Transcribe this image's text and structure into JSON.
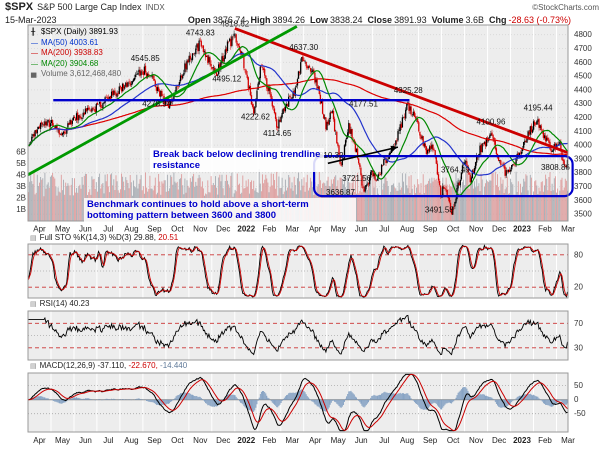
{
  "header": {
    "symbol": "$SPX",
    "name": "S&P 500 Large Cap Index",
    "exchange": "INDX",
    "date": "15-Mar-2023",
    "copyright": "©StockCharts.com",
    "fields": [
      {
        "label": "Open",
        "value": "3876.74"
      },
      {
        "label": "High",
        "value": "3894.26"
      },
      {
        "label": "Low",
        "value": "3838.24"
      },
      {
        "label": "Close",
        "value": "3891.93"
      },
      {
        "label": "Volume",
        "value": "3.6B"
      },
      {
        "label": "Chg",
        "value": "-28.63 (-0.73%)",
        "color": "#cc0000"
      }
    ]
  },
  "legend": {
    "series": "$SPX (Daily) 3891.93",
    "ma50": "MA(50) 4003.61",
    "ma200": "MA(200) 3938.83",
    "ma20": "MA(20) 3904.68",
    "volume": "Volume 3,612,468,480"
  },
  "annotations": {
    "note1": "Break back below declining trendline resistance",
    "note2": "Benchmark continues to hold above a short-term bottoming pattern between 3600 and 3800"
  },
  "panels": {
    "sto": {
      "label": "Full STO %K(14,3) %D(3)",
      "k": "29.88,",
      "d": "20.51"
    },
    "rsi": {
      "label": "RSI(14)",
      "value": "40.23"
    },
    "macd": {
      "label": "MACD(12,26,9)",
      "v1": "-37.110,",
      "v2": "-22.670,",
      "v3": "-14.440"
    }
  },
  "chart_data": {
    "type": "candlestick",
    "title": "$SPX S&P 500 Large Cap Index (Daily)",
    "months": 23.5,
    "days_per_month": 21,
    "ylim": [
      3450,
      4870
    ],
    "y_ticks": [
      3500,
      3600,
      3700,
      3800,
      3900,
      4000,
      4100,
      4200,
      4300,
      4400,
      4500,
      4600,
      4700,
      4800
    ],
    "volume_axis": {
      "ticks": [
        1,
        2,
        3,
        4,
        5,
        6
      ],
      "unit": "B"
    },
    "x_labels": [
      "Apr",
      "May",
      "Jun",
      "Jul",
      "Aug",
      "Sep",
      "Oct",
      "Nov",
      "Dec",
      "2022",
      "Feb",
      "Mar",
      "Apr",
      "May",
      "Jun",
      "Jul",
      "Aug",
      "Sep",
      "Oct",
      "Nov",
      "Dec",
      "2023",
      "Feb",
      "Mar"
    ],
    "price_anchors": [
      [
        0,
        4015
      ],
      [
        0.6,
        4170
      ],
      [
        1.05,
        4150
      ],
      [
        1.4,
        4065
      ],
      [
        2.0,
        4195
      ],
      [
        2.6,
        4245
      ],
      [
        3.1,
        4285
      ],
      [
        3.45,
        4335
      ],
      [
        3.8,
        4390
      ],
      [
        4.3,
        4440
      ],
      [
        4.8,
        4510
      ],
      [
        5.05,
        4537
      ],
      [
        5.5,
        4450
      ],
      [
        5.95,
        4307
      ],
      [
        6.15,
        4290
      ],
      [
        6.7,
        4520
      ],
      [
        7.2,
        4690
      ],
      [
        7.55,
        4735
      ],
      [
        7.95,
        4570
      ],
      [
        8.2,
        4512
      ],
      [
        8.65,
        4715
      ],
      [
        9.0,
        4795
      ],
      [
        9.3,
        4660
      ],
      [
        9.8,
        4240
      ],
      [
        10.1,
        4580
      ],
      [
        10.5,
        4380
      ],
      [
        10.8,
        4130
      ],
      [
        11.15,
        4270
      ],
      [
        11.6,
        4400
      ],
      [
        11.9,
        4620
      ],
      [
        12.25,
        4575
      ],
      [
        12.6,
        4420
      ],
      [
        12.95,
        4135
      ],
      [
        13.2,
        4260
      ],
      [
        13.6,
        3835
      ],
      [
        13.95,
        4140
      ],
      [
        14.3,
        3945
      ],
      [
        14.6,
        3655
      ],
      [
        14.95,
        3795
      ],
      [
        15.2,
        3755
      ],
      [
        15.5,
        3880
      ],
      [
        15.95,
        3995
      ],
      [
        16.5,
        4295
      ],
      [
        16.95,
        4150
      ],
      [
        17.35,
        3925
      ],
      [
        17.6,
        4005
      ],
      [
        17.95,
        3640
      ],
      [
        18.1,
        3700
      ],
      [
        18.45,
        3510
      ],
      [
        18.75,
        3730
      ],
      [
        19.0,
        3890
      ],
      [
        19.25,
        3735
      ],
      [
        19.6,
        3955
      ],
      [
        19.95,
        4025
      ],
      [
        20.1,
        4085
      ],
      [
        20.55,
        3870
      ],
      [
        20.8,
        3795
      ],
      [
        21.1,
        3855
      ],
      [
        21.35,
        3935
      ],
      [
        21.95,
        4135
      ],
      [
        22.15,
        4180
      ],
      [
        22.55,
        4035
      ],
      [
        22.85,
        3965
      ],
      [
        23.1,
        4035
      ],
      [
        23.35,
        3835
      ],
      [
        23.5,
        3891.93
      ]
    ],
    "pivot_labels": [
      {
        "text": "4545.85",
        "m": 5.1,
        "p": 4610
      },
      {
        "text": "4743.83",
        "m": 7.5,
        "p": 4795
      },
      {
        "text": "4818.62",
        "m": 9.0,
        "p": 4858
      },
      {
        "text": "4495.12",
        "m": 8.65,
        "p": 4462
      },
      {
        "text": "4637.30",
        "m": 12.0,
        "p": 4690
      },
      {
        "text": "4325.28",
        "m": 16.55,
        "p": 4378
      },
      {
        "text": "4278.94",
        "m": 5.6,
        "p": 4278
      },
      {
        "text": "4177.51",
        "m": 14.6,
        "p": 4278
      },
      {
        "text": "4222.62",
        "m": 9.9,
        "p": 4185
      },
      {
        "text": "4114.65",
        "m": 10.85,
        "p": 4066
      },
      {
        "text": "4100.96",
        "m": 20.15,
        "p": 4150
      },
      {
        "text": "4195.44",
        "m": 22.2,
        "p": 4250
      },
      {
        "text": "3810.32",
        "m": 13.1,
        "p": 3905
      },
      {
        "text": "3721.56",
        "m": 14.3,
        "p": 3738
      },
      {
        "text": "3636.87",
        "m": 13.6,
        "p": 3640
      },
      {
        "text": "3764.49",
        "m": 18.6,
        "p": 3802
      },
      {
        "text": "3808.86",
        "m": 22.95,
        "p": 3818
      },
      {
        "text": "3491.58",
        "m": 17.9,
        "p": 3512
      }
    ],
    "trendlines": [
      {
        "name": "declining-resistance",
        "color": "#cc0000",
        "width": 2.8,
        "from": [
          9.0,
          4845
        ],
        "to": [
          23.65,
          3935
        ]
      },
      {
        "name": "rising-support",
        "color": "#009900",
        "width": 2.8,
        "from": [
          0,
          3785
        ],
        "to": [
          11.7,
          4860
        ]
      }
    ],
    "support_line": {
      "level": 4325,
      "from": 1.1,
      "to": 16.6,
      "color": "#0000cc",
      "width": 2.4
    },
    "pattern_box": {
      "from": 12.45,
      "to": 23.7,
      "top": 3920,
      "bottom": 3630,
      "color": "#0000cc",
      "width": 2.2
    },
    "arrow": {
      "from": [
        13.05,
        3868
      ],
      "to": [
        16.1,
        3985
      ]
    },
    "indicators": {
      "sto": {
        "k_period": 14,
        "smooth": 3,
        "d_period": 3,
        "thresholds": [
          80,
          20
        ]
      },
      "rsi": {
        "period": 14,
        "thresholds": [
          70,
          30
        ]
      },
      "macd": {
        "params": [
          12,
          26,
          9
        ],
        "axis_ticks": [
          50,
          0,
          -50
        ]
      }
    },
    "current": {
      "close": 3891.93,
      "sto_k": 29.88,
      "sto_d": 20.51,
      "rsi": 40.23,
      "macd": -37.11,
      "signal": -22.67,
      "hist": -14.44
    }
  }
}
